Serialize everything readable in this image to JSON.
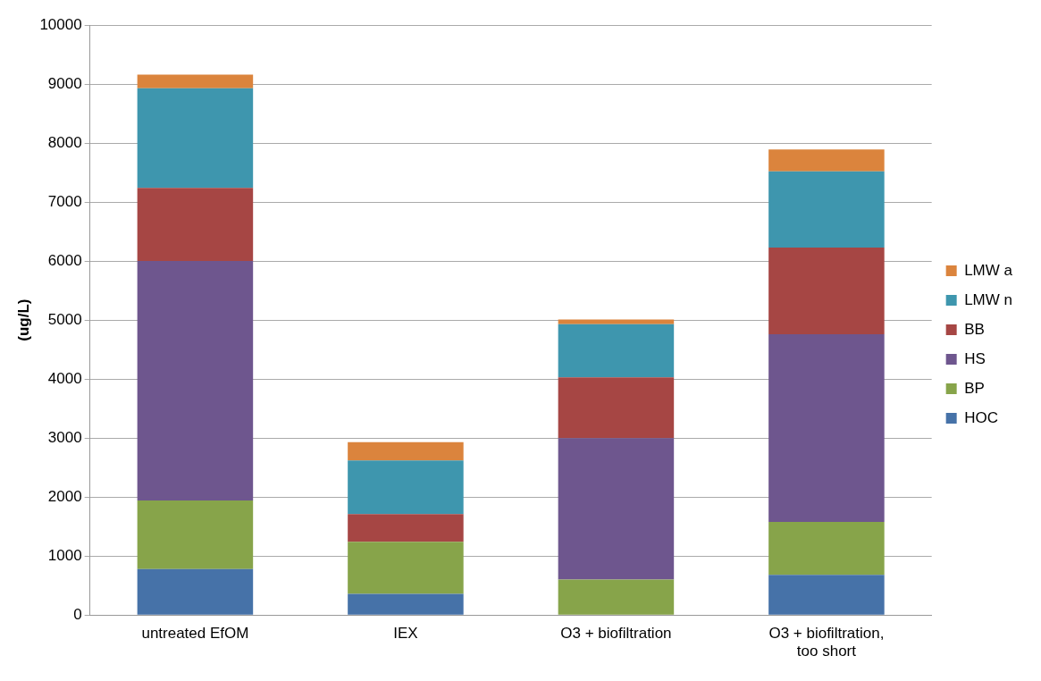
{
  "chart_data": {
    "type": "bar",
    "stacked": true,
    "ylabel": "(ug/L)",
    "categories": [
      "untreated EfOM",
      "IEX",
      "O3 + biofiltration",
      "O3 + biofiltration, too short"
    ],
    "series": [
      {
        "name": "HOC",
        "color": "#4672a8",
        "values": [
          780,
          360,
          0,
          680
        ]
      },
      {
        "name": "BP",
        "color": "#87a44a",
        "values": [
          1160,
          880,
          600,
          900
        ]
      },
      {
        "name": "HS",
        "color": "#6e568e",
        "values": [
          4060,
          0,
          2400,
          3180
        ]
      },
      {
        "name": "BB",
        "color": "#a64644",
        "values": [
          1240,
          470,
          1030,
          1470
        ]
      },
      {
        "name": "LMW n",
        "color": "#3e96ae",
        "values": [
          1690,
          910,
          900,
          1290
        ]
      },
      {
        "name": "LMW a",
        "color": "#db843d",
        "values": [
          230,
          310,
          80,
          370
        ]
      }
    ],
    "ylim": [
      0,
      10000
    ],
    "yticks": [
      0,
      1000,
      2000,
      3000,
      4000,
      5000,
      6000,
      7000,
      8000,
      9000,
      10000
    ],
    "grid": "y",
    "legend": "right"
  }
}
